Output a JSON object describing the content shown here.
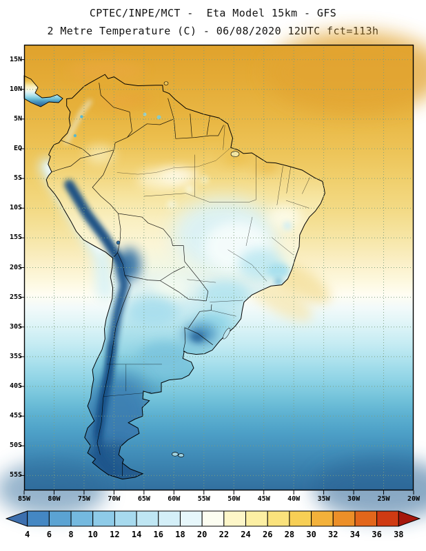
{
  "header": {
    "line1": "CPTEC/INPE/MCT -  Eta Model 15km - GFS",
    "line2": "2 Metre Temperature (C) - 06/08/2020 12UTC fct=113h"
  },
  "axes": {
    "lat_ticks": [
      {
        "label": "15N",
        "deg": 15
      },
      {
        "label": "10N",
        "deg": 10
      },
      {
        "label": "5N",
        "deg": 5
      },
      {
        "label": "EQ",
        "deg": 0
      },
      {
        "label": "5S",
        "deg": -5
      },
      {
        "label": "10S",
        "deg": -10
      },
      {
        "label": "15S",
        "deg": -15
      },
      {
        "label": "20S",
        "deg": -20
      },
      {
        "label": "25S",
        "deg": -25
      },
      {
        "label": "30S",
        "deg": -30
      },
      {
        "label": "35S",
        "deg": -35
      },
      {
        "label": "40S",
        "deg": -40
      },
      {
        "label": "45S",
        "deg": -45
      },
      {
        "label": "50S",
        "deg": -50
      },
      {
        "label": "55S",
        "deg": -55
      }
    ],
    "lon_ticks": [
      {
        "label": "85W",
        "deg": -85
      },
      {
        "label": "80W",
        "deg": -80
      },
      {
        "label": "75W",
        "deg": -75
      },
      {
        "label": "70W",
        "deg": -70
      },
      {
        "label": "65W",
        "deg": -65
      },
      {
        "label": "60W",
        "deg": -60
      },
      {
        "label": "55W",
        "deg": -55
      },
      {
        "label": "50W",
        "deg": -50
      },
      {
        "label": "45W",
        "deg": -45
      },
      {
        "label": "40W",
        "deg": -40
      },
      {
        "label": "35W",
        "deg": -35
      },
      {
        "label": "30W",
        "deg": -30
      },
      {
        "label": "25W",
        "deg": -25
      },
      {
        "label": "20W",
        "deg": -20
      }
    ]
  },
  "colorbar": {
    "labels": [
      "4",
      "6",
      "8",
      "10",
      "12",
      "14",
      "16",
      "18",
      "20",
      "22",
      "24",
      "26",
      "28",
      "30",
      "32",
      "34",
      "36",
      "38"
    ],
    "colors": [
      "#3c6fae",
      "#4487c3",
      "#5ba3d3",
      "#74b9df",
      "#8ecbe8",
      "#a7daee",
      "#bfe6f3",
      "#d4eff8",
      "#e7f7fb",
      "#fcfdf1",
      "#fdf6c8",
      "#fcefa3",
      "#fae27c",
      "#f7cf55",
      "#f3b13a",
      "#ec8f28",
      "#e2661b",
      "#cf3a12",
      "#a5170c"
    ]
  }
}
